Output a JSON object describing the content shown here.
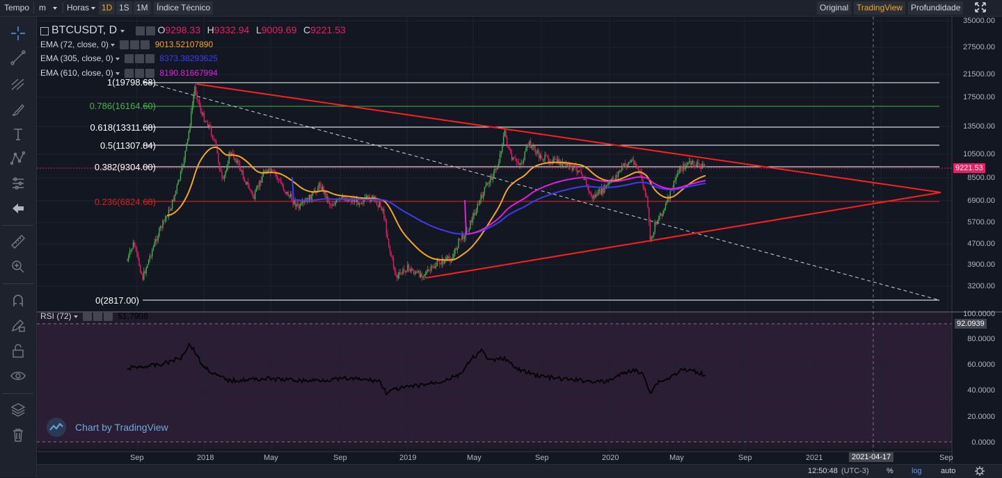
{
  "toolbar": {
    "tempo": "Tempo",
    "interval_unit": "m",
    "hours": "Horas",
    "intervals": [
      "1D",
      "1S",
      "1M"
    ],
    "active_interval": "1D",
    "technical_index": "Índice Técnico",
    "views": [
      "Original",
      "TradingView",
      "Profundidade"
    ],
    "active_view": "TradingView",
    "fullscreen_icon": "fullscreen-icon"
  },
  "legend": {
    "symbol": "BTCUSDT, D",
    "open_label": "O",
    "open": "9298.33",
    "high_label": "H",
    "high": "9332.94",
    "low_label": "L",
    "low": "9009.69",
    "close_label": "C",
    "close": "9221.53",
    "ema": [
      {
        "label": "EMA (72, close, 0)",
        "value": "9013.52107890",
        "color": "#f5a623"
      },
      {
        "label": "EMA (305, close, 0)",
        "value": "8373.38293625",
        "color": "#3f3bf2"
      },
      {
        "label": "EMA (610, close, 0)",
        "value": "8190.81667994",
        "color": "#e020e0"
      }
    ]
  },
  "fib_levels": [
    {
      "label": "1(19798.68)",
      "color": "#ffffff"
    },
    {
      "label": "0.786(16164.60)",
      "color": "#4caf50"
    },
    {
      "label": "0.618(13311.68)",
      "color": "#ffffff"
    },
    {
      "label": "0.5(11307.84)",
      "color": "#ffffff"
    },
    {
      "label": "0.382(9304.00)",
      "color": "#ffffff"
    },
    {
      "label": "0.236(6824.68)",
      "color": "#e01e1e"
    },
    {
      "label": "0(2817.00)",
      "color": "#ffffff"
    }
  ],
  "price_axis": [
    "35000.00",
    "27500.00",
    "21500.00",
    "17500.00",
    "13500.00",
    "10500.00",
    "8500.00",
    "6900.00",
    "5700.00",
    "4700.00",
    "3900.00",
    "3200.00"
  ],
  "last_price": "9221.53",
  "rsi": {
    "label": "RSI (72)",
    "value": "51.7908",
    "axis": [
      "100.0000",
      "80.0000",
      "60.0000",
      "40.0000",
      "20.0000",
      "0.0000"
    ],
    "badge": "92.0939"
  },
  "time_axis": [
    "Sep",
    "2018",
    "May",
    "Sep",
    "2019",
    "May",
    "Sep",
    "2020",
    "May",
    "Sep",
    "2021",
    "Sep"
  ],
  "crosshair_date": "2021-04-17",
  "watermark": "Chart by TradingView",
  "bottom": {
    "clock": "12:50:48",
    "timezone": "(UTC-3)",
    "percent": "%",
    "log": "log",
    "auto": "auto"
  },
  "colors": {
    "background": "#131722",
    "up": "#4caf50",
    "down": "#e91e63",
    "triangle": "#ff1f1f",
    "rsi_line": "#000000",
    "rsi_band": "#2a1d34"
  }
}
